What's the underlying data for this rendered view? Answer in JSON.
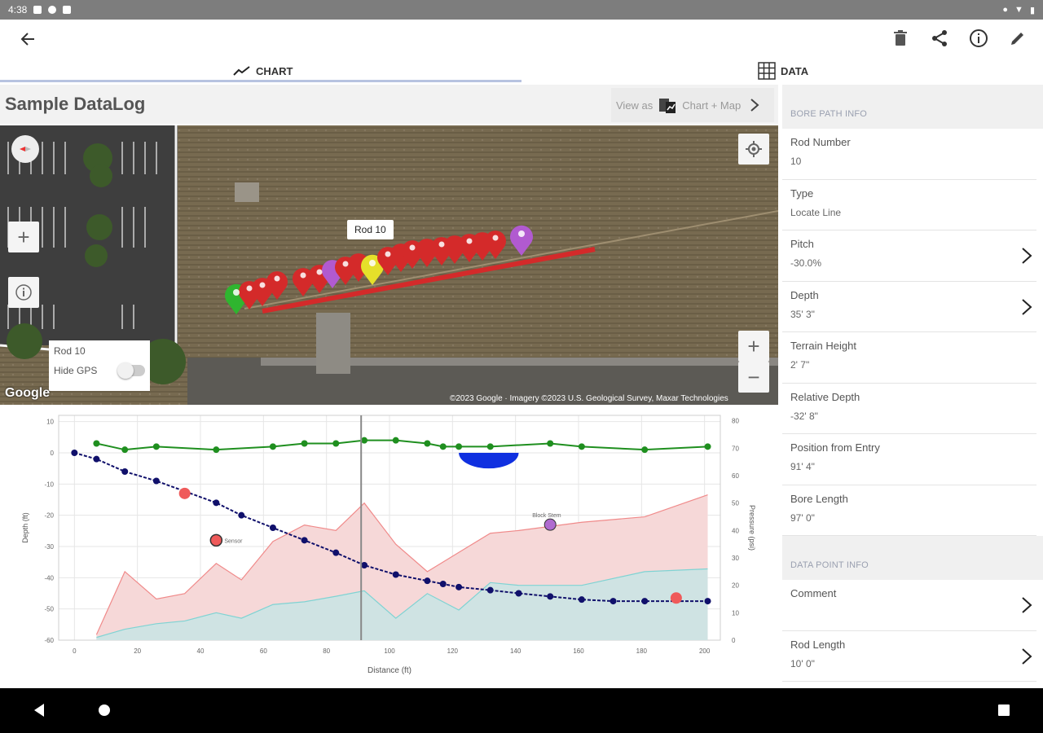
{
  "status": {
    "time": "4:38"
  },
  "tabs": [
    {
      "label": "CHART"
    },
    {
      "label": "DATA"
    }
  ],
  "page": {
    "title": "Sample DataLog"
  },
  "view_as": {
    "prefix": "View as",
    "target": "Chart + Map"
  },
  "map": {
    "popup": "Rod 10",
    "gps_box": {
      "rod": "Rod 10",
      "toggle_label": "Hide GPS"
    },
    "logo": "Google",
    "attribution": "©2023 Google · Imagery ©2023 U.S. Geological Survey, Maxar Technologies"
  },
  "sidebar": {
    "bore_path_header": "BORE PATH INFO",
    "bore_path": [
      {
        "label": "Rod Number",
        "value": "10",
        "chevron": false
      },
      {
        "label": "Type",
        "value": "Locate Line",
        "chevron": false
      },
      {
        "label": "Pitch",
        "value": "-30.0%",
        "chevron": true
      },
      {
        "label": "Depth",
        "value": "35' 3\"",
        "chevron": true
      },
      {
        "label": "Terrain Height",
        "value": "2' 7\"",
        "chevron": false
      },
      {
        "label": "Relative Depth",
        "value": "-32' 8\"",
        "chevron": false
      },
      {
        "label": "Position from Entry",
        "value": "91' 4\"",
        "chevron": false
      },
      {
        "label": "Bore Length",
        "value": "97' 0\"",
        "chevron": false
      }
    ],
    "data_point_header": "DATA POINT INFO",
    "data_point": [
      {
        "label": "Comment",
        "value": "",
        "chevron": true
      },
      {
        "label": "Rod Length",
        "value": "10' 0\"",
        "chevron": true
      }
    ]
  },
  "chart_data": {
    "type": "line",
    "xlabel": "Distance (ft)",
    "ylabel": "Depth (ft)",
    "y2label": "Pressure (psi)",
    "xlim": [
      -5,
      205
    ],
    "ylim": [
      -60,
      12
    ],
    "y2lim": [
      0,
      82
    ],
    "x_ticks": [
      0,
      20,
      40,
      60,
      80,
      100,
      120,
      140,
      160,
      180,
      200
    ],
    "y_ticks": [
      10,
      0,
      -10,
      -20,
      -30,
      -40,
      -50,
      -60
    ],
    "y2_ticks": [
      80,
      70,
      60,
      50,
      40,
      30,
      20,
      10,
      0
    ],
    "cursor_x": 91,
    "grid": true,
    "colors": {
      "terrain": "#1f8f1f",
      "bore": "#10106b",
      "pressure_fill": "#f6d8d8",
      "pressure_line": "#f08a8a",
      "flow_fill": "#cfe3e3",
      "flow_line": "#7fd3d3",
      "red_marker": "#ef5a5a",
      "purple_marker": "#b06bd0",
      "water": "#1030e0"
    },
    "series": [
      {
        "role": "terrain",
        "x": [
          7,
          16,
          26,
          45,
          63,
          73,
          83,
          92,
          102,
          112,
          117,
          122,
          132,
          151,
          161,
          181,
          201
        ],
        "y": [
          3,
          1,
          2,
          1,
          2,
          3,
          3,
          4,
          4,
          3,
          2,
          2,
          2,
          3,
          2,
          1,
          2
        ]
      },
      {
        "role": "bore",
        "x": [
          0,
          7,
          16,
          26,
          45,
          53,
          63,
          73,
          83,
          92,
          102,
          112,
          117,
          122,
          132,
          141,
          151,
          161,
          171,
          181,
          201
        ],
        "y": [
          0,
          -2,
          -6,
          -9,
          -16,
          -20,
          -24,
          -28,
          -32,
          -36,
          -39,
          -41,
          -42,
          -43,
          -44,
          -45,
          -46,
          -47,
          -47.5,
          -47.5,
          -47.5
        ]
      },
      {
        "role": "pressure",
        "x": [
          7,
          16,
          26,
          35,
          45,
          53,
          63,
          73,
          83,
          92,
          102,
          112,
          122,
          132,
          141,
          161,
          181,
          201
        ],
        "y2": [
          2,
          25,
          15,
          17,
          28,
          22,
          36,
          42,
          40,
          50,
          35,
          25,
          32,
          39,
          40,
          43,
          45,
          53
        ]
      },
      {
        "role": "flow",
        "x": [
          7,
          16,
          26,
          35,
          45,
          53,
          63,
          73,
          83,
          92,
          102,
          112,
          122,
          132,
          141,
          161,
          181,
          201
        ],
        "y2": [
          1,
          4,
          6,
          7,
          10,
          8,
          13,
          14,
          16,
          18,
          8,
          17,
          11,
          21,
          20,
          20,
          25,
          26
        ]
      }
    ],
    "markers": [
      {
        "kind": "red-dot",
        "x": 35,
        "y": -13
      },
      {
        "kind": "red-dot",
        "x": 191,
        "y": -46.5
      },
      {
        "kind": "red-dot-outlined",
        "x": 45,
        "y": -28,
        "label": "Sensor"
      },
      {
        "kind": "purple-dot",
        "x": 151,
        "y": -23,
        "label": "Block Stem"
      },
      {
        "kind": "water",
        "x_from": 122,
        "x_to": 141,
        "depth": -5
      }
    ]
  }
}
